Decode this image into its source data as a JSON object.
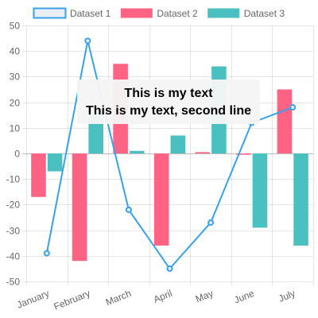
{
  "chart_data": {
    "type": "bar",
    "categories": [
      "January",
      "February",
      "March",
      "April",
      "May",
      "June",
      "July"
    ],
    "series": [
      {
        "name": "Dataset 1",
        "type": "line",
        "values": [
          -39,
          44,
          -22,
          -45,
          -27,
          12,
          18
        ],
        "color": "#36a2eb",
        "fill": "#e8eef1"
      },
      {
        "name": "Dataset 2",
        "type": "bar",
        "values": [
          -17,
          -42,
          35,
          -36,
          0.5,
          -0.5,
          25
        ],
        "color": "#ff6384"
      },
      {
        "name": "Dataset 3",
        "type": "bar",
        "values": [
          -7,
          16,
          1,
          7,
          34,
          -29,
          -36
        ],
        "color": "#4bc0c0"
      }
    ],
    "ylim": [
      -50,
      50
    ],
    "y_ticks": [
      50,
      40,
      30,
      20,
      10,
      0,
      -10,
      -20,
      -30,
      -40,
      -50
    ],
    "grid": true,
    "legend_position": "top",
    "tooltip": {
      "lines": [
        "This is my text",
        "This is my text, second line"
      ],
      "category": "March"
    }
  }
}
